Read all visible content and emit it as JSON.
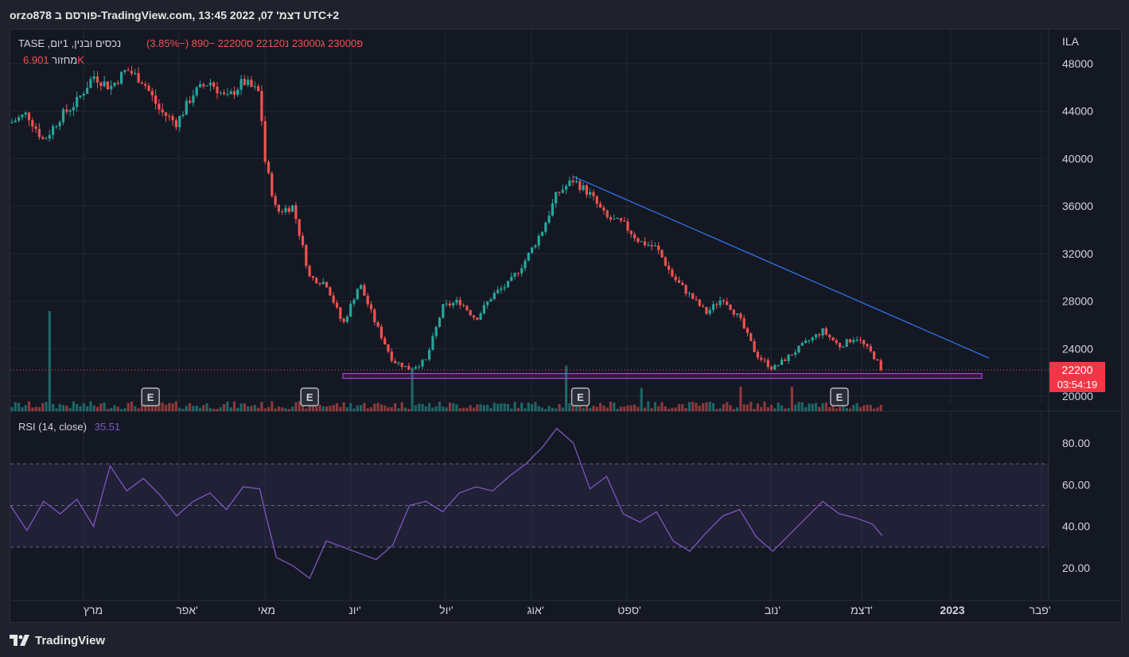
{
  "header": {
    "title": "orzo878 פורסם ב-TradingView.com, דצמ' 07, 2022 13:45 UTC+2"
  },
  "legend": {
    "symbol": "נכסים ובנין, 1יום, TASE",
    "ohlc": "פ23000 ג23000 נ22120 ס22200",
    "change": "−890 (−3.85%)",
    "volume_label": "מחזור",
    "volume_value": "6.901K",
    "rsi_label": "RSI (14, close)",
    "rsi_value": "35.51"
  },
  "price_axis": {
    "currency": "ILA",
    "ticks": [
      "48000",
      "44000",
      "40000",
      "36000",
      "32000",
      "28000",
      "24000",
      "20000"
    ],
    "last_price": "22200",
    "countdown": "03:54:19"
  },
  "rsi_axis": {
    "ticks": [
      "80.00",
      "60.00",
      "40.00",
      "20.00"
    ]
  },
  "time_axis": {
    "labels": [
      "מרץ",
      "אפר'",
      "מאי",
      "יונ'",
      "יול'",
      "אוג'",
      "ספט'",
      "נוב'",
      "דצמ'",
      "2023",
      "פבר'"
    ]
  },
  "earnings_marker": "E",
  "footer": {
    "brand": "TradingView"
  },
  "colors": {
    "up": "#26a69a",
    "down": "#ef5350",
    "trendline": "#3179f5",
    "zone": "#b33fd8",
    "rsi": "#7e57c2",
    "price_badge": "#f23645"
  },
  "chart_data": {
    "type": "candlestick",
    "price_axis": {
      "min": 19000,
      "max": 49000,
      "ticks": [
        20000,
        24000,
        28000,
        32000,
        36000,
        40000,
        44000,
        48000
      ]
    },
    "rsi_axis": {
      "ticks": [
        20,
        40,
        60,
        80
      ],
      "bands": [
        30,
        50,
        70
      ]
    },
    "price_path": [
      [
        "2022-02-01",
        43000
      ],
      [
        "2022-02-08",
        43800
      ],
      [
        "2022-02-15",
        41500
      ],
      [
        "2022-02-22",
        43500
      ],
      [
        "2022-03-01",
        44800
      ],
      [
        "2022-03-08",
        47000
      ],
      [
        "2022-03-15",
        46000
      ],
      [
        "2022-03-22",
        47500
      ],
      [
        "2022-03-29",
        46500
      ],
      [
        "2022-04-05",
        44000
      ],
      [
        "2022-04-12",
        43000
      ],
      [
        "2022-04-19",
        45500
      ],
      [
        "2022-04-26",
        46500
      ],
      [
        "2022-05-03",
        45000
      ],
      [
        "2022-05-10",
        46500
      ],
      [
        "2022-05-17",
        45500
      ],
      [
        "2022-05-19",
        40000
      ],
      [
        "2022-05-24",
        35500
      ],
      [
        "2022-05-31",
        36000
      ],
      [
        "2022-06-07",
        30000
      ],
      [
        "2022-06-14",
        29500
      ],
      [
        "2022-06-21",
        26000
      ],
      [
        "2022-06-28",
        29500
      ],
      [
        "2022-07-05",
        26000
      ],
      [
        "2022-07-12",
        23000
      ],
      [
        "2022-07-19",
        22300
      ],
      [
        "2022-07-26",
        23000
      ],
      [
        "2022-08-02",
        27500
      ],
      [
        "2022-08-09",
        28000
      ],
      [
        "2022-08-16",
        26500
      ],
      [
        "2022-08-23",
        28500
      ],
      [
        "2022-08-30",
        29500
      ],
      [
        "2022-09-06",
        31500
      ],
      [
        "2022-09-13",
        34000
      ],
      [
        "2022-09-19",
        37000
      ],
      [
        "2022-09-26",
        38200
      ],
      [
        "2022-10-03",
        37000
      ],
      [
        "2022-10-10",
        35000
      ],
      [
        "2022-10-17",
        34500
      ],
      [
        "2022-10-24",
        33000
      ],
      [
        "2022-10-31",
        32500
      ],
      [
        "2022-11-07",
        30000
      ],
      [
        "2022-11-14",
        28500
      ],
      [
        "2022-11-21",
        27000
      ],
      [
        "2022-11-28",
        28300
      ],
      [
        "2022-12-05",
        26500
      ],
      [
        "2022-12-12",
        23500
      ],
      [
        "2022-12-19",
        22300
      ],
      [
        "2023-01-02",
        24500
      ],
      [
        "2023-01-09",
        25500
      ],
      [
        "2023-01-16",
        24200
      ],
      [
        "2023-01-23",
        25000
      ],
      [
        "2023-01-30",
        23500
      ],
      [
        "2023-02-03",
        22200
      ]
    ],
    "trendline": [
      [
        "2022-09-26",
        38500
      ],
      [
        "2023-03-20",
        23200
      ]
    ],
    "support_zone": {
      "from": "2022-06-21",
      "to": "2023-03-17",
      "low": 21500,
      "high": 21900
    },
    "last_close": 22200,
    "volume_spikes": [
      [
        "2022-02-18",
        4.5
      ],
      [
        "2022-07-20",
        1.9
      ],
      [
        "2022-09-23",
        2.05
      ],
      [
        "2022-10-25",
        1.05
      ],
      [
        "2022-12-05",
        1.1
      ],
      [
        "2022-12-27",
        1.1
      ]
    ],
    "earnings_dates": [
      "2022-04-01",
      "2022-06-07",
      "2022-09-29",
      "2023-01-16"
    ],
    "rsi_path": [
      [
        "2022-02-01",
        50
      ],
      [
        "2022-02-08",
        38
      ],
      [
        "2022-02-15",
        52
      ],
      [
        "2022-02-22",
        46
      ],
      [
        "2022-03-01",
        53
      ],
      [
        "2022-03-08",
        40
      ],
      [
        "2022-03-15",
        69
      ],
      [
        "2022-03-22",
        57
      ],
      [
        "2022-03-29",
        63
      ],
      [
        "2022-04-05",
        55
      ],
      [
        "2022-04-12",
        45
      ],
      [
        "2022-04-19",
        52
      ],
      [
        "2022-04-26",
        56
      ],
      [
        "2022-05-03",
        48
      ],
      [
        "2022-05-10",
        59
      ],
      [
        "2022-05-17",
        58
      ],
      [
        "2022-05-19",
        48
      ],
      [
        "2022-05-24",
        25
      ],
      [
        "2022-05-31",
        21
      ],
      [
        "2022-06-07",
        15
      ],
      [
        "2022-06-14",
        33
      ],
      [
        "2022-06-21",
        30
      ],
      [
        "2022-06-28",
        27
      ],
      [
        "2022-07-05",
        24
      ],
      [
        "2022-07-12",
        31
      ],
      [
        "2022-07-19",
        50
      ],
      [
        "2022-07-26",
        52
      ],
      [
        "2022-08-02",
        47
      ],
      [
        "2022-08-09",
        56
      ],
      [
        "2022-08-16",
        59
      ],
      [
        "2022-08-23",
        57
      ],
      [
        "2022-08-30",
        64
      ],
      [
        "2022-09-06",
        70
      ],
      [
        "2022-09-13",
        78
      ],
      [
        "2022-09-19",
        87
      ],
      [
        "2022-09-26",
        80
      ],
      [
        "2022-10-03",
        58
      ],
      [
        "2022-10-10",
        64
      ],
      [
        "2022-10-17",
        46
      ],
      [
        "2022-10-24",
        42
      ],
      [
        "2022-10-31",
        47
      ],
      [
        "2022-11-07",
        33
      ],
      [
        "2022-11-14",
        28
      ],
      [
        "2022-11-21",
        37
      ],
      [
        "2022-11-28",
        45
      ],
      [
        "2022-12-05",
        48
      ],
      [
        "2022-12-12",
        35
      ],
      [
        "2022-12-19",
        28
      ],
      [
        "2022-12-26",
        36
      ],
      [
        "2023-01-02",
        44
      ],
      [
        "2023-01-09",
        52
      ],
      [
        "2023-01-16",
        46
      ],
      [
        "2023-01-23",
        44
      ],
      [
        "2023-01-30",
        41
      ],
      [
        "2023-02-03",
        35.5
      ]
    ]
  }
}
